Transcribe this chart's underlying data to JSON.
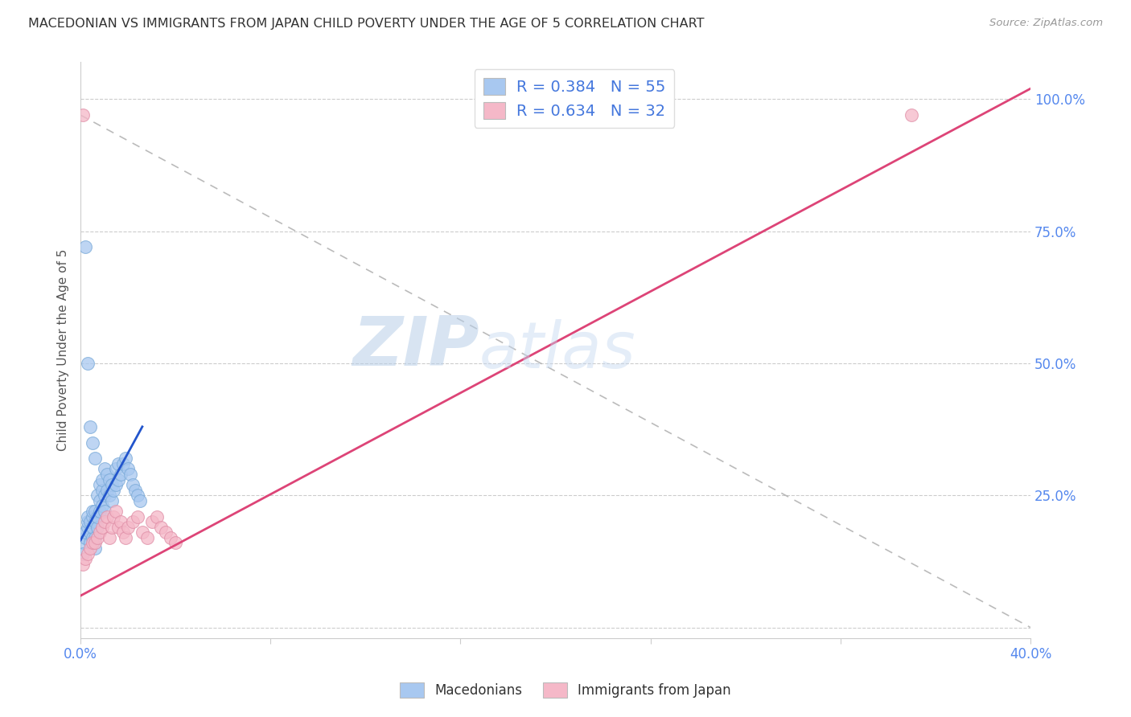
{
  "title": "MACEDONIAN VS IMMIGRANTS FROM JAPAN CHILD POVERTY UNDER THE AGE OF 5 CORRELATION CHART",
  "source": "Source: ZipAtlas.com",
  "ylabel": "Child Poverty Under the Age of 5",
  "xlim": [
    0.0,
    0.4
  ],
  "ylim": [
    -0.02,
    1.07
  ],
  "macedonian_color": "#a8c8f0",
  "macedonian_edge": "#7aaad8",
  "japan_color": "#f5b8c8",
  "japan_edge": "#e090a8",
  "macedonian_line_color": "#2255cc",
  "japan_line_color": "#dd4477",
  "diagonal_color": "#aaaaaa",
  "watermark_color": "#d0e4f5",
  "label1": "Macedonians",
  "label2": "Immigrants from Japan",
  "legend_text1": "R = 0.384   N = 55",
  "legend_text2": "R = 0.634   N = 32",
  "mac_x": [
    0.001,
    0.002,
    0.002,
    0.003,
    0.003,
    0.003,
    0.004,
    0.004,
    0.004,
    0.005,
    0.005,
    0.005,
    0.005,
    0.006,
    0.006,
    0.006,
    0.006,
    0.007,
    0.007,
    0.007,
    0.008,
    0.008,
    0.008,
    0.009,
    0.009,
    0.009,
    0.01,
    0.01,
    0.01,
    0.011,
    0.011,
    0.012,
    0.012,
    0.013,
    0.013,
    0.014,
    0.015,
    0.015,
    0.016,
    0.016,
    0.017,
    0.018,
    0.019,
    0.02,
    0.021,
    0.022,
    0.023,
    0.024,
    0.025,
    0.001,
    0.002,
    0.003,
    0.004,
    0.005,
    0.006
  ],
  "mac_y": [
    0.16,
    0.17,
    0.18,
    0.19,
    0.2,
    0.21,
    0.16,
    0.18,
    0.2,
    0.17,
    0.19,
    0.21,
    0.22,
    0.15,
    0.17,
    0.2,
    0.22,
    0.19,
    0.21,
    0.25,
    0.22,
    0.24,
    0.27,
    0.23,
    0.26,
    0.28,
    0.22,
    0.25,
    0.3,
    0.26,
    0.29,
    0.25,
    0.28,
    0.24,
    0.27,
    0.26,
    0.27,
    0.3,
    0.28,
    0.31,
    0.29,
    0.31,
    0.32,
    0.3,
    0.29,
    0.27,
    0.26,
    0.25,
    0.24,
    0.14,
    0.72,
    0.5,
    0.38,
    0.35,
    0.32
  ],
  "jap_x": [
    0.001,
    0.002,
    0.003,
    0.004,
    0.005,
    0.006,
    0.007,
    0.008,
    0.009,
    0.01,
    0.011,
    0.012,
    0.013,
    0.014,
    0.015,
    0.016,
    0.017,
    0.018,
    0.019,
    0.02,
    0.022,
    0.024,
    0.026,
    0.028,
    0.03,
    0.032,
    0.034,
    0.036,
    0.038,
    0.04,
    0.35,
    0.001
  ],
  "jap_y": [
    0.12,
    0.13,
    0.14,
    0.15,
    0.16,
    0.16,
    0.17,
    0.18,
    0.19,
    0.2,
    0.21,
    0.17,
    0.19,
    0.21,
    0.22,
    0.19,
    0.2,
    0.18,
    0.17,
    0.19,
    0.2,
    0.21,
    0.18,
    0.17,
    0.2,
    0.21,
    0.19,
    0.18,
    0.17,
    0.16,
    0.97,
    0.97
  ],
  "mac_line": {
    "x0": 0.0,
    "y0": 0.165,
    "x1": 0.026,
    "y1": 0.38
  },
  "jap_line": {
    "x0": 0.0,
    "y0": 0.06,
    "x1": 0.4,
    "y1": 1.02
  },
  "diag_line": {
    "x0": 0.0,
    "y0": 0.97,
    "x1": 0.4,
    "y1": 0.0
  },
  "xtick_positions": [
    0.0,
    0.08,
    0.16,
    0.24,
    0.32,
    0.4
  ],
  "xtick_labels": [
    "0.0%",
    "",
    "",
    "",
    "",
    "40.0%"
  ],
  "ytick_right_positions": [
    0.0,
    0.25,
    0.5,
    0.75,
    1.0
  ],
  "ytick_right_labels": [
    "",
    "25.0%",
    "50.0%",
    "75.0%",
    "100.0%"
  ]
}
